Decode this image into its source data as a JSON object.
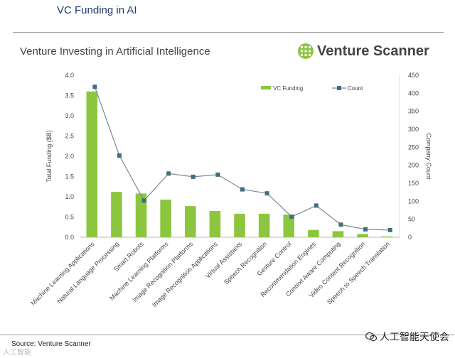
{
  "page": {
    "title": "VC Funding in AI",
    "source": "Source: Venture Scanner",
    "watermark": "人工智能天使会",
    "watermark_left": "人工智能"
  },
  "brand": {
    "name": "Venture Scanner"
  },
  "chart_data": {
    "type": "bar",
    "title": "Venture Investing in Artificial Intelligence",
    "categories": [
      "Machine Learning Applications",
      "Natural Language Processing",
      "Smart Robots",
      "Machine Learning Platforms",
      "Image Recognition Platforms",
      "Image Recognition Applications",
      "Virtual Assistants",
      "Speech Recognition",
      "Gesture Control",
      "Recommendation Engines",
      "Context Aware Computing",
      "Video Content Recognition",
      "Speech to Speech Translation"
    ],
    "series": [
      {
        "name": "VC Funding",
        "type": "bar",
        "axis": "left",
        "color": "#8cc63f",
        "values": [
          3.6,
          1.12,
          1.08,
          0.93,
          0.77,
          0.65,
          0.58,
          0.58,
          0.56,
          0.18,
          0.15,
          0.08,
          0.02
        ]
      },
      {
        "name": "Count",
        "type": "line",
        "axis": "right",
        "color": "#3f6f7a",
        "values": [
          418,
          227,
          102,
          177,
          168,
          174,
          133,
          122,
          57,
          88,
          35,
          22,
          20
        ]
      }
    ],
    "ylabel": "Total Funding ($B)",
    "ylim": [
      0,
      4.0
    ],
    "yticks": [
      "0.0",
      "0.5",
      "1.0",
      "1.5",
      "2.0",
      "2.5",
      "3.0",
      "3.5",
      "4.0"
    ],
    "y2label": "Company Count",
    "y2lim": [
      0,
      450
    ],
    "y2ticks": [
      "0",
      "50",
      "100",
      "150",
      "200",
      "250",
      "300",
      "350",
      "400",
      "450"
    ],
    "legend": "top-right",
    "grid": false
  }
}
